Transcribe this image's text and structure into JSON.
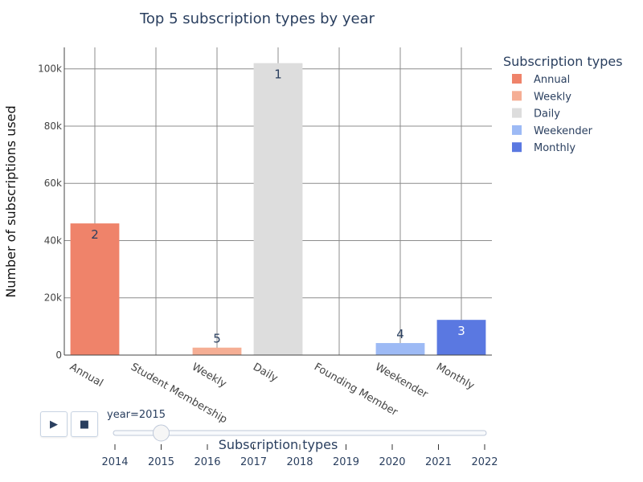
{
  "chart_data": {
    "type": "bar",
    "title": "Top 5 subscription types by year",
    "xlabel": "Subscription types",
    "ylabel": "Number of subscriptions used",
    "categories": [
      "Annual",
      "Student Membership",
      "Weekly",
      "Daily",
      "Founding Member",
      "Weekender",
      "Monthly"
    ],
    "values": [
      46000,
      0,
      2600,
      102000,
      0,
      4200,
      12300
    ],
    "rank_labels": [
      "2",
      "",
      "5",
      "1",
      "",
      "4",
      "3"
    ],
    "bar_colors": [
      "#ef836a",
      null,
      "#f5ae94",
      "#dddddd",
      null,
      "#9dbaf5",
      "#5a78e1"
    ],
    "ylim": [
      0,
      107500
    ],
    "yticks": [
      0,
      20000,
      40000,
      60000,
      80000,
      100000
    ],
    "ytick_labels": [
      "0",
      "20k",
      "40k",
      "60k",
      "80k",
      "100k"
    ],
    "grid": true,
    "legend": {
      "title": "Subscription types",
      "placement": "top-right",
      "entries": [
        {
          "name": "Annual",
          "color": "#ef836a"
        },
        {
          "name": "Weekly",
          "color": "#f5ae94"
        },
        {
          "name": "Daily",
          "color": "#dddddd"
        },
        {
          "name": "Weekender",
          "color": "#9dbaf5"
        },
        {
          "name": "Monthly",
          "color": "#5a78e1"
        }
      ]
    }
  },
  "slider": {
    "current_label": "year=2015",
    "years": [
      "2014",
      "2015",
      "2016",
      "2017",
      "2018",
      "2019",
      "2020",
      "2021",
      "2022"
    ],
    "current_index": 1
  },
  "controls": {
    "play_label": "▶",
    "stop_label": "■"
  },
  "colors": {
    "grid": "#8c8c8c",
    "axis": "#444444",
    "text": "#2a3f5f"
  }
}
